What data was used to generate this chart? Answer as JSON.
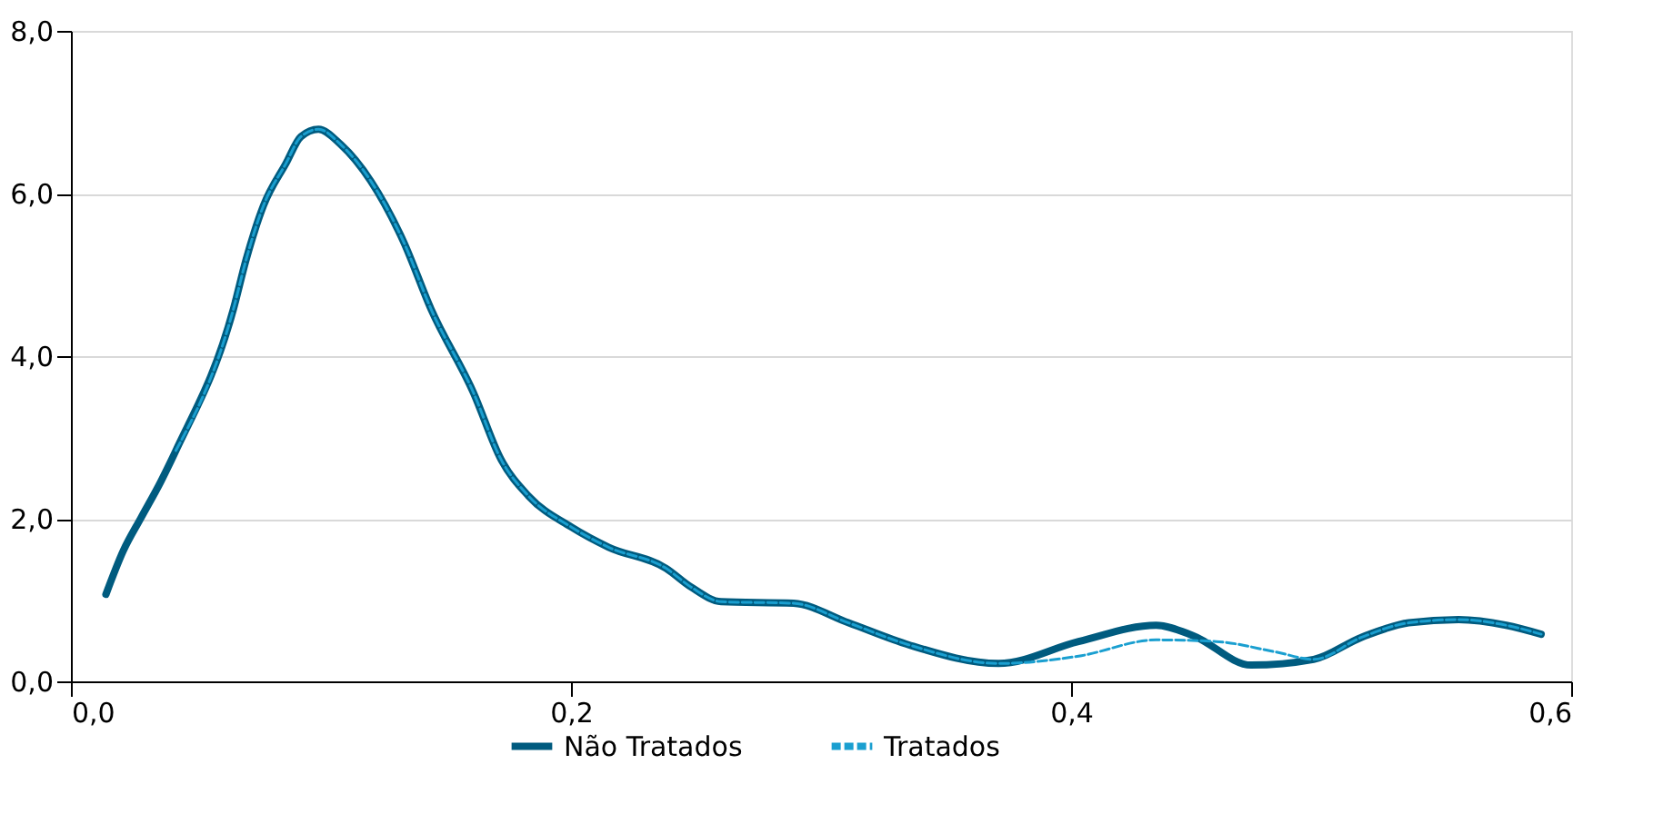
{
  "chart_data": {
    "type": "line",
    "xlim": [
      0,
      0.6
    ],
    "xticks": [
      {
        "value": 0,
        "label": "0,0"
      },
      {
        "value": 0.2,
        "label": "0,2"
      },
      {
        "value": 0.4,
        "label": "0,4"
      },
      {
        "value": 0.6,
        "label": "0,6"
      }
    ],
    "ylim": [
      0,
      8
    ],
    "yticks": [
      {
        "value": 0,
        "label": "0,0"
      },
      {
        "value": 2,
        "label": "2,0"
      },
      {
        "value": 4,
        "label": "4,0"
      },
      {
        "value": 6,
        "label": "6,0"
      },
      {
        "value": 8,
        "label": "8,0"
      }
    ],
    "grid": "y",
    "legend": "bottom",
    "series": [
      {
        "name": "Não Tratados",
        "color": "#005b7f",
        "line_style": "solid",
        "x": [
          0.014,
          0.021,
          0.028,
          0.036,
          0.042,
          0.065,
          0.07,
          0.077,
          0.086,
          0.092,
          0.099,
          0.108,
          0.12,
          0.133,
          0.144,
          0.161,
          0.172,
          0.183,
          0.2,
          0.215,
          0.238,
          0.248,
          0.26,
          0.289,
          0.311,
          0.335,
          0.371,
          0.403,
          0.434,
          0.449,
          0.472,
          0.497,
          0.516,
          0.535,
          0.555,
          0.574,
          0.588
        ],
        "values": [
          1.07,
          1.61,
          2.01,
          2.46,
          2.84,
          4.58,
          5.18,
          5.85,
          6.37,
          6.7,
          6.79,
          6.6,
          6.15,
          5.41,
          4.58,
          3.55,
          2.73,
          2.28,
          1.9,
          1.65,
          1.39,
          1.16,
          0.98,
          0.96,
          0.72,
          0.45,
          0.22,
          0.49,
          0.69,
          0.56,
          0.2,
          0.27,
          0.54,
          0.72,
          0.76,
          0.69,
          0.58
        ]
      },
      {
        "name": "Tratados",
        "color": "#1a9fd0",
        "line_style": "dashed",
        "x": [
          0.042,
          0.065,
          0.07,
          0.077,
          0.086,
          0.092,
          0.099,
          0.108,
          0.12,
          0.133,
          0.144,
          0.161,
          0.172,
          0.183,
          0.2,
          0.215,
          0.238,
          0.248,
          0.26,
          0.289,
          0.311,
          0.335,
          0.371,
          0.403,
          0.434,
          0.458,
          0.482,
          0.497,
          0.516,
          0.535,
          0.555,
          0.574,
          0.588
        ],
        "values": [
          2.84,
          4.58,
          5.18,
          5.85,
          6.37,
          6.7,
          6.79,
          6.6,
          6.15,
          5.41,
          4.58,
          3.55,
          2.73,
          2.28,
          1.9,
          1.65,
          1.39,
          1.16,
          0.98,
          0.96,
          0.72,
          0.45,
          0.22,
          0.31,
          0.51,
          0.49,
          0.36,
          0.27,
          0.54,
          0.72,
          0.76,
          0.69,
          0.58
        ]
      }
    ]
  }
}
